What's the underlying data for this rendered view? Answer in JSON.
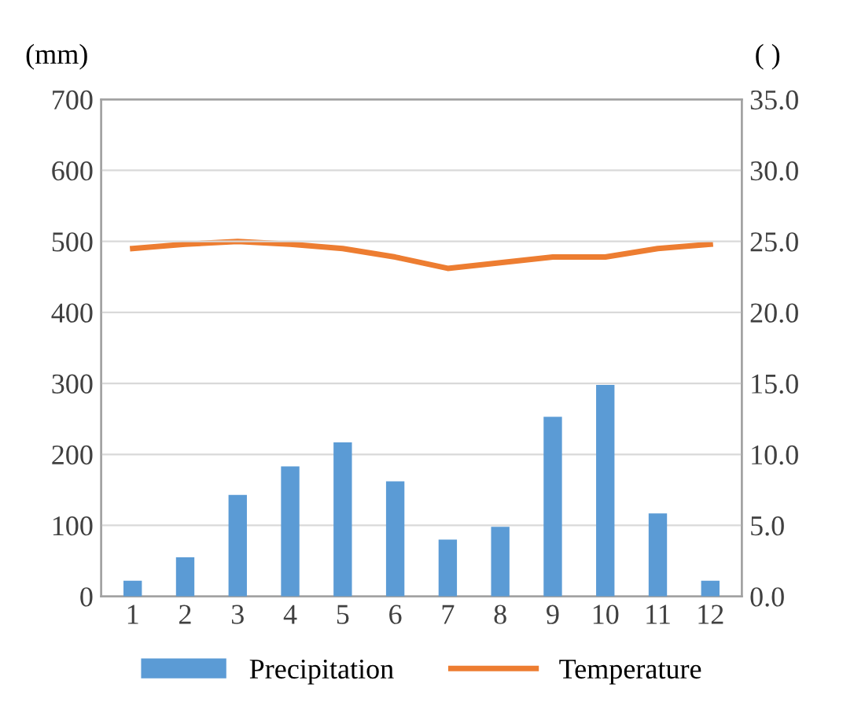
{
  "chart_data": {
    "type": "bar",
    "categories": [
      "1",
      "2",
      "3",
      "4",
      "5",
      "6",
      "7",
      "8",
      "9",
      "10",
      "11",
      "12"
    ],
    "ylabel": "(mm)",
    "y2label": "( )",
    "series": [
      {
        "name": "Precipitation",
        "color": "#5b9bd5",
        "values": [
          22,
          55,
          143,
          183,
          217,
          162,
          80,
          98,
          253,
          298,
          117,
          22
        ]
      },
      {
        "name": "Temperature",
        "type": "line",
        "axis": "y2",
        "color": "#ed7d31",
        "values": [
          24.5,
          24.8,
          25.0,
          24.8,
          24.5,
          23.9,
          23.1,
          23.5,
          23.9,
          23.9,
          24.5,
          24.8
        ]
      }
    ],
    "ylim": [
      0,
      700
    ],
    "yticks": [
      0,
      100,
      200,
      300,
      400,
      500,
      600,
      700
    ],
    "y2lim": [
      0,
      35
    ],
    "y2ticks": [
      {
        "value": 0,
        "label": "0.0"
      },
      {
        "value": 5,
        "label": "5.0"
      },
      {
        "value": 10,
        "label": "10.0"
      },
      {
        "value": 15,
        "label": "15.0"
      },
      {
        "value": 20,
        "label": "20.0"
      },
      {
        "value": 25,
        "label": "25.0"
      },
      {
        "value": 30,
        "label": "30.0"
      },
      {
        "value": 35,
        "label": "35.0"
      }
    ],
    "grid": "y",
    "legend": "bottom",
    "marker": "none"
  }
}
